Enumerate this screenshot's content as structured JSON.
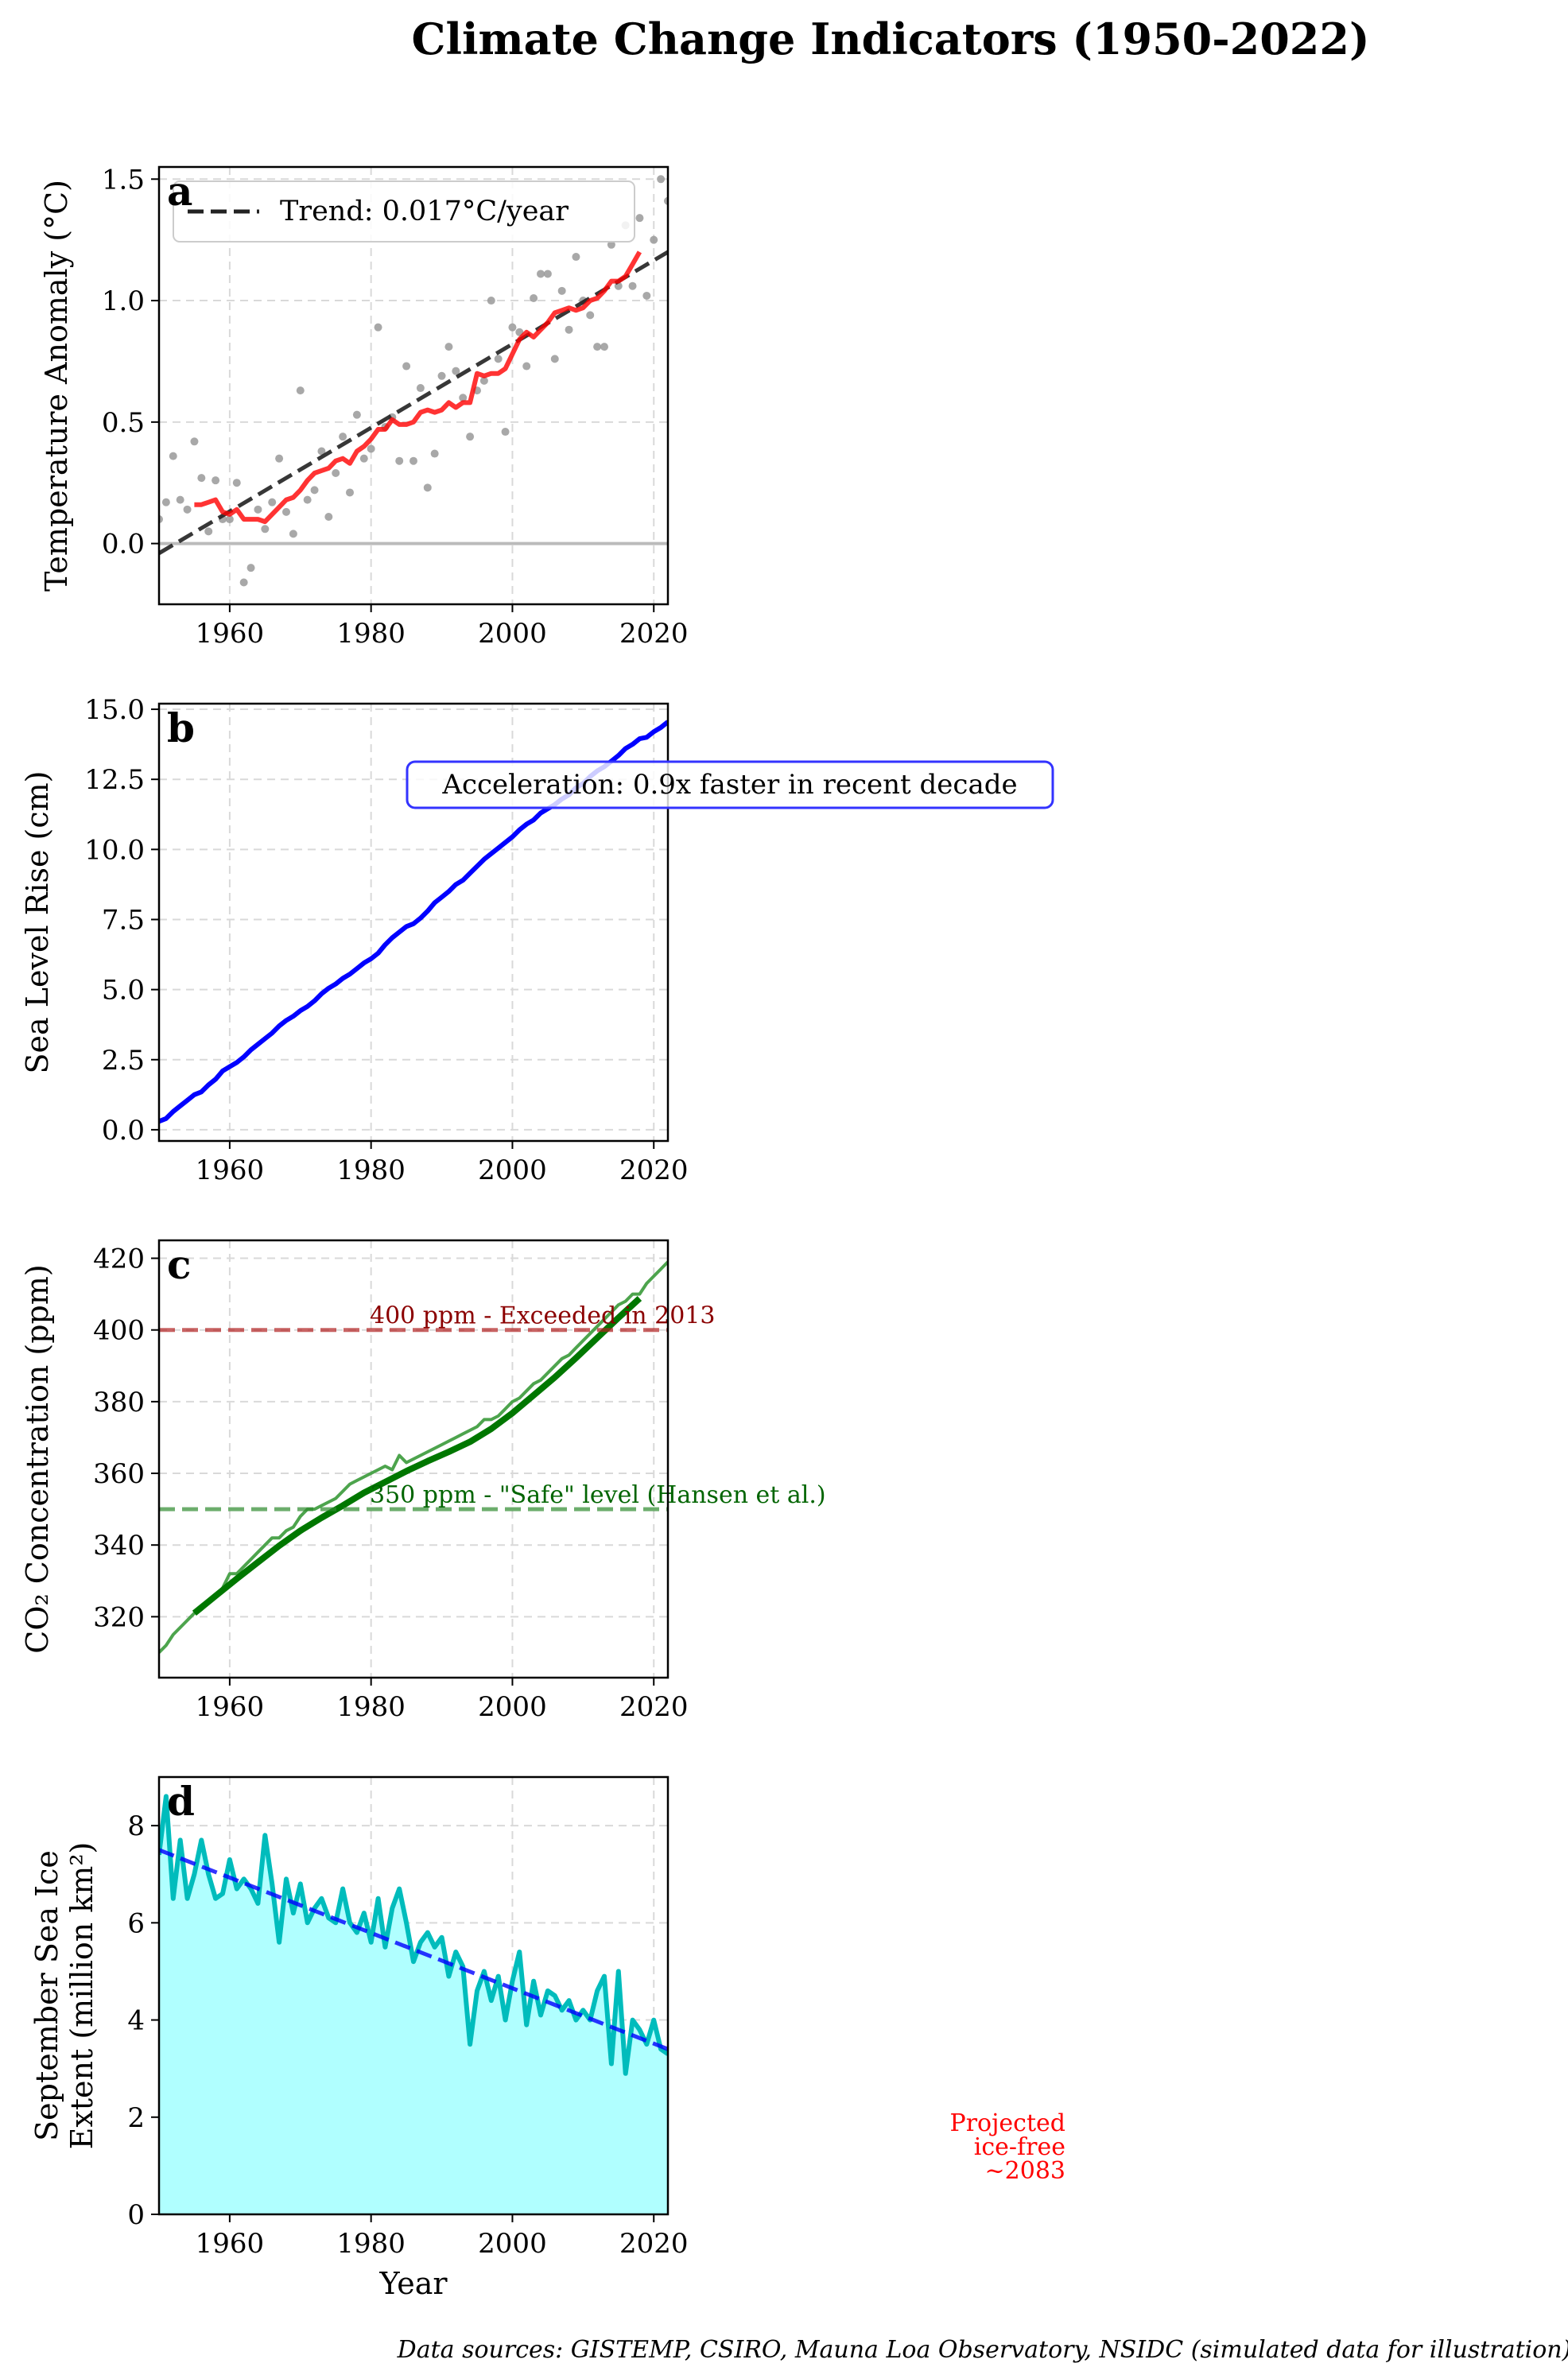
{
  "figure": {
    "title": "Climate Change Indicators (1950-2022)",
    "footer": "Data sources: GISTEMP, CSIRO, Mauna Loa Observatory, NSIDC (simulated data for illustration)"
  },
  "colors": {
    "temp_scatter": "#999999",
    "temp_smooth": "#ff0000",
    "temp_trend": "#222222",
    "sea_line": "#0000ff",
    "co2_raw": "#3a9a3a",
    "co2_smooth": "#007700",
    "co2_400": "#b22222",
    "co2_350": "#2e8b2e",
    "ice_line": "#00bcbc",
    "ice_fill": "#b0ffff",
    "ice_trend": "#0000ff",
    "projection": "#ff0000"
  },
  "chart_data": [
    {
      "panel": "a",
      "type": "scatter",
      "ylabel": "Temperature Anomaly (°C)",
      "xlim": [
        1950,
        2022
      ],
      "ylim": [
        -0.25,
        1.55
      ],
      "xticks": [
        1960,
        1980,
        2000,
        2020
      ],
      "yticks": [
        0.0,
        0.5,
        1.0,
        1.5
      ],
      "ytick_labels": [
        "0.0",
        "0.5",
        "1.0",
        "1.5"
      ],
      "grid": true,
      "legend": {
        "placement": "top-left",
        "entries": [
          "Trend: 0.017°C/year"
        ]
      },
      "reference_line": {
        "y": 0.0
      },
      "trend": {
        "name": "Trend: 0.017°C/year",
        "x": [
          1950,
          2022
        ],
        "y": [
          -0.04,
          1.2
        ]
      },
      "series": [
        {
          "kind": "points",
          "x": [
            1950,
            1951,
            1952,
            1953,
            1954,
            1955,
            1956,
            1957,
            1958,
            1959,
            1960,
            1961,
            1962,
            1963,
            1964,
            1965,
            1966,
            1967,
            1968,
            1969,
            1970,
            1971,
            1972,
            1973,
            1974,
            1975,
            1976,
            1977,
            1978,
            1979,
            1980,
            1981,
            1982,
            1983,
            1984,
            1985,
            1986,
            1987,
            1988,
            1989,
            1990,
            1991,
            1992,
            1993,
            1994,
            1995,
            1996,
            1997,
            1998,
            1999,
            2000,
            2001,
            2002,
            2003,
            2004,
            2005,
            2006,
            2007,
            2008,
            2009,
            2010,
            2011,
            2012,
            2013,
            2014,
            2015,
            2016,
            2017,
            2018,
            2019,
            2020,
            2021,
            2022
          ],
          "y": [
            0.1,
            0.17,
            0.36,
            0.18,
            0.14,
            0.42,
            0.27,
            0.05,
            0.26,
            0.1,
            0.1,
            0.25,
            -0.16,
            -0.1,
            0.14,
            0.06,
            0.17,
            0.35,
            0.13,
            0.04,
            0.63,
            0.18,
            0.22,
            0.38,
            0.11,
            0.29,
            0.44,
            0.21,
            0.53,
            0.35,
            0.39,
            0.89,
            0.48,
            0.52,
            0.34,
            0.73,
            0.34,
            0.64,
            0.23,
            0.37,
            0.69,
            0.81,
            0.71,
            0.6,
            0.44,
            0.63,
            0.67,
            1.0,
            0.76,
            0.46,
            0.89,
            0.87,
            0.73,
            1.01,
            1.11,
            1.11,
            0.76,
            1.04,
            0.88,
            1.18,
            1.0,
            0.94,
            0.81,
            0.81,
            1.23,
            1.06,
            1.31,
            1.06,
            1.34,
            1.02,
            1.25,
            1.5,
            1.41
          ]
        },
        {
          "kind": "smoothed",
          "x": [
            1955,
            1956,
            1957,
            1958,
            1959,
            1960,
            1961,
            1962,
            1963,
            1964,
            1965,
            1966,
            1967,
            1968,
            1969,
            1970,
            1971,
            1972,
            1973,
            1974,
            1975,
            1976,
            1977,
            1978,
            1979,
            1980,
            1981,
            1982,
            1983,
            1984,
            1985,
            1986,
            1987,
            1988,
            1989,
            1990,
            1991,
            1992,
            1993,
            1994,
            1995,
            1996,
            1997,
            1998,
            1999,
            2000,
            2001,
            2002,
            2003,
            2004,
            2005,
            2006,
            2007,
            2008,
            2009,
            2010,
            2011,
            2012,
            2013,
            2014,
            2015,
            2016,
            2017,
            2018
          ],
          "y": [
            0.16,
            0.16,
            0.17,
            0.18,
            0.13,
            0.12,
            0.14,
            0.1,
            0.1,
            0.1,
            0.09,
            0.12,
            0.15,
            0.18,
            0.19,
            0.22,
            0.26,
            0.29,
            0.3,
            0.31,
            0.34,
            0.35,
            0.33,
            0.38,
            0.4,
            0.43,
            0.47,
            0.47,
            0.51,
            0.49,
            0.49,
            0.5,
            0.54,
            0.55,
            0.54,
            0.55,
            0.58,
            0.56,
            0.58,
            0.58,
            0.7,
            0.69,
            0.7,
            0.7,
            0.72,
            0.78,
            0.84,
            0.87,
            0.85,
            0.88,
            0.91,
            0.95,
            0.96,
            0.97,
            0.96,
            0.97,
            1.0,
            1.01,
            1.04,
            1.08,
            1.08,
            1.1,
            1.15,
            1.2
          ]
        }
      ]
    },
    {
      "panel": "b",
      "type": "line",
      "ylabel": "Sea Level Rise (cm)",
      "xlim": [
        1950,
        2022
      ],
      "ylim": [
        -0.4,
        15.2
      ],
      "xticks": [
        1960,
        1980,
        2000,
        2020
      ],
      "yticks": [
        0.0,
        2.5,
        5.0,
        7.5,
        10.0,
        12.5,
        15.0
      ],
      "ytick_labels": [
        "0.0",
        "2.5",
        "5.0",
        "7.5",
        "10.0",
        "12.5",
        "15.0"
      ],
      "grid": true,
      "annotation": "Acceleration: 0.9x faster in recent decade",
      "series": [
        {
          "x": [
            1950,
            1951,
            1952,
            1953,
            1954,
            1955,
            1956,
            1957,
            1958,
            1959,
            1960,
            1961,
            1962,
            1963,
            1964,
            1965,
            1966,
            1967,
            1968,
            1969,
            1970,
            1971,
            1972,
            1973,
            1974,
            1975,
            1976,
            1977,
            1978,
            1979,
            1980,
            1981,
            1982,
            1983,
            1984,
            1985,
            1986,
            1987,
            1988,
            1989,
            1990,
            1991,
            1992,
            1993,
            1994,
            1995,
            1996,
            1997,
            1998,
            1999,
            2000,
            2001,
            2002,
            2003,
            2004,
            2005,
            2006,
            2007,
            2008,
            2009,
            2010,
            2011,
            2012,
            2013,
            2014,
            2015,
            2016,
            2017,
            2018,
            2019,
            2020,
            2021,
            2022
          ],
          "y": [
            0.3,
            0.4,
            0.65,
            0.85,
            1.05,
            1.25,
            1.35,
            1.6,
            1.8,
            2.1,
            2.25,
            2.4,
            2.6,
            2.85,
            3.05,
            3.25,
            3.45,
            3.7,
            3.9,
            4.05,
            4.25,
            4.4,
            4.6,
            4.85,
            5.05,
            5.2,
            5.4,
            5.55,
            5.75,
            5.95,
            6.1,
            6.3,
            6.6,
            6.85,
            7.05,
            7.25,
            7.35,
            7.55,
            7.8,
            8.1,
            8.3,
            8.5,
            8.75,
            8.9,
            9.15,
            9.4,
            9.65,
            9.85,
            10.05,
            10.25,
            10.45,
            10.7,
            10.9,
            11.05,
            11.3,
            11.45,
            11.6,
            11.8,
            11.95,
            12.2,
            12.35,
            12.6,
            12.8,
            12.95,
            13.15,
            13.35,
            13.6,
            13.75,
            13.95,
            14.0,
            14.2,
            14.35,
            14.55
          ]
        }
      ]
    },
    {
      "panel": "c",
      "type": "line",
      "ylabel": "CO₂ Concentration (ppm)",
      "xlim": [
        1950,
        2022
      ],
      "ylim": [
        303,
        425
      ],
      "xticks": [
        1960,
        1980,
        2000,
        2020
      ],
      "yticks": [
        320,
        340,
        360,
        380,
        400,
        420
      ],
      "ytick_labels": [
        "320",
        "340",
        "360",
        "380",
        "400",
        "420"
      ],
      "grid": true,
      "reference_lines": [
        {
          "y": 400,
          "label": "400 ppm - Exceeded in 2013"
        },
        {
          "y": 350,
          "label": "350 ppm - \"Safe\" level (Hansen et al.)"
        }
      ],
      "series": [
        {
          "kind": "raw",
          "x": [
            1950,
            1951,
            1952,
            1953,
            1954,
            1955,
            1956,
            1957,
            1958,
            1959,
            1960,
            1961,
            1962,
            1963,
            1964,
            1965,
            1966,
            1967,
            1968,
            1969,
            1970,
            1971,
            1972,
            1973,
            1974,
            1975,
            1976,
            1977,
            1978,
            1979,
            1980,
            1981,
            1982,
            1983,
            1984,
            1985,
            1986,
            1987,
            1988,
            1989,
            1990,
            1991,
            1992,
            1993,
            1994,
            1995,
            1996,
            1997,
            1998,
            1999,
            2000,
            2001,
            2002,
            2003,
            2004,
            2005,
            2006,
            2007,
            2008,
            2009,
            2010,
            2011,
            2012,
            2013,
            2014,
            2015,
            2016,
            2017,
            2018,
            2019,
            2020,
            2021,
            2022
          ],
          "y": [
            310,
            312,
            315,
            317,
            319,
            321,
            322,
            324,
            326,
            328,
            332,
            332,
            334,
            336,
            338,
            340,
            342,
            342,
            344,
            345,
            348,
            350,
            350,
            351,
            352,
            353,
            355,
            357,
            358,
            359,
            360,
            361,
            362,
            361,
            365,
            363,
            364,
            365,
            366,
            367,
            368,
            369,
            370,
            371,
            372,
            373,
            375,
            375,
            376,
            378,
            380,
            381,
            383,
            385,
            386,
            388,
            390,
            392,
            393,
            395,
            397,
            399,
            401,
            403,
            405,
            407,
            408,
            410,
            410,
            413,
            415,
            417,
            419
          ]
        },
        {
          "kind": "smoothed",
          "x": [
            1955,
            1958,
            1961,
            1964,
            1967,
            1970,
            1973,
            1976,
            1979,
            1982,
            1985,
            1988,
            1991,
            1994,
            1997,
            2000,
            2003,
            2006,
            2009,
            2012,
            2015,
            2018
          ],
          "y": [
            321,
            325.8,
            330.6,
            335.2,
            339.8,
            344,
            347.6,
            351,
            354.6,
            357.6,
            360.6,
            363.4,
            366,
            368.8,
            372.4,
            376.8,
            381.8,
            386.8,
            392.2,
            397.8,
            403.4,
            408.8
          ]
        }
      ]
    },
    {
      "panel": "d",
      "type": "area",
      "ylabel": "September Sea Ice",
      "ylabel2": "Extent (million km²)",
      "xlabel": "Year",
      "xlim": [
        1950,
        2022
      ],
      "ylim": [
        0,
        9
      ],
      "xticks": [
        1960,
        1980,
        2000,
        2020
      ],
      "yticks": [
        0,
        2,
        4,
        6,
        8
      ],
      "ytick_labels": [
        "0",
        "2",
        "4",
        "6",
        "8"
      ],
      "grid": true,
      "trend": {
        "x": [
          1950,
          2022
        ],
        "y": [
          7.5,
          3.4
        ]
      },
      "annotation": [
        "Projected",
        "ice-free",
        "~2083"
      ],
      "series": [
        {
          "x": [
            1950,
            1951,
            1952,
            1953,
            1954,
            1955,
            1956,
            1957,
            1958,
            1959,
            1960,
            1961,
            1962,
            1963,
            1964,
            1965,
            1966,
            1967,
            1968,
            1969,
            1970,
            1971,
            1972,
            1973,
            1974,
            1975,
            1976,
            1977,
            1978,
            1979,
            1980,
            1981,
            1982,
            1983,
            1984,
            1985,
            1986,
            1987,
            1988,
            1989,
            1990,
            1991,
            1992,
            1993,
            1994,
            1995,
            1996,
            1997,
            1998,
            1999,
            2000,
            2001,
            2002,
            2003,
            2004,
            2005,
            2006,
            2007,
            2008,
            2009,
            2010,
            2011,
            2012,
            2013,
            2014,
            2015,
            2016,
            2017,
            2018,
            2019,
            2020,
            2021,
            2022
          ],
          "y": [
            7.4,
            8.6,
            6.5,
            7.7,
            6.5,
            7.0,
            7.7,
            7.0,
            6.5,
            6.6,
            7.3,
            6.7,
            6.9,
            6.7,
            6.4,
            7.8,
            6.8,
            5.6,
            6.9,
            6.2,
            6.8,
            6.0,
            6.3,
            6.5,
            6.1,
            6.0,
            6.7,
            6.0,
            5.8,
            6.2,
            5.6,
            6.5,
            5.5,
            6.3,
            6.7,
            6.0,
            5.2,
            5.6,
            5.8,
            5.5,
            5.7,
            4.9,
            5.4,
            5.1,
            3.5,
            4.6,
            5.0,
            4.4,
            4.9,
            4.0,
            4.8,
            5.4,
            3.9,
            4.8,
            4.1,
            4.6,
            4.5,
            4.2,
            4.4,
            4.0,
            4.2,
            4.0,
            4.6,
            4.9,
            3.1,
            5.0,
            2.9,
            4.0,
            3.8,
            3.5,
            4.0,
            3.4,
            3.3
          ]
        }
      ]
    }
  ]
}
